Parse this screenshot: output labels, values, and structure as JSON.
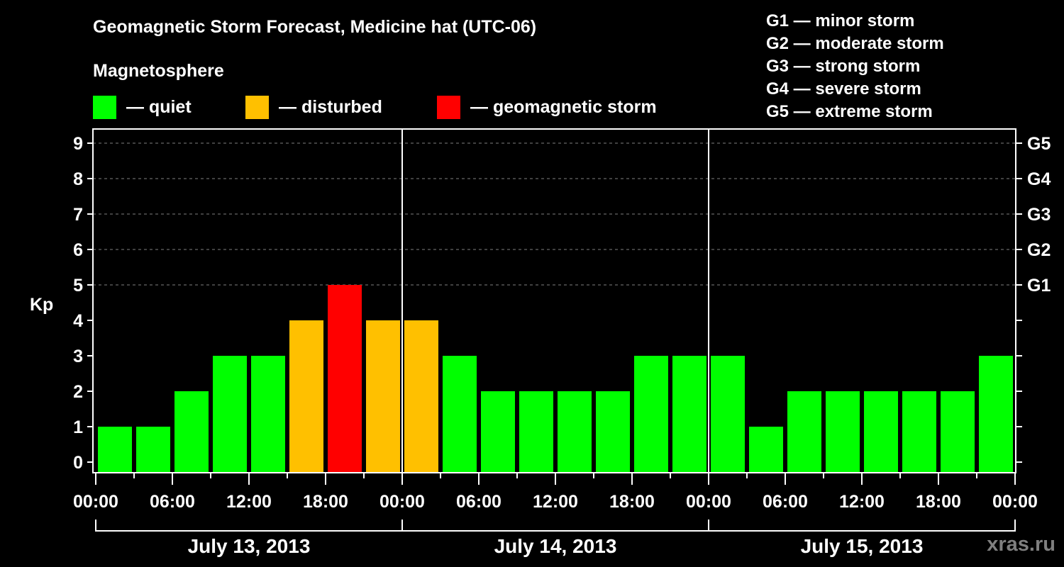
{
  "title": "Geomagnetic Storm Forecast, Medicine hat (UTC-06)",
  "legend": {
    "heading": "Magnetosphere",
    "items": [
      {
        "label": "— quiet",
        "color": "#00ff00"
      },
      {
        "label": "— disturbed",
        "color": "#ffc000"
      },
      {
        "label": "— geomagnetic storm",
        "color": "#ff0000"
      }
    ]
  },
  "storm_scale": [
    "G1 — minor storm",
    "G2 — moderate storm",
    "G3 — strong storm",
    "G4 — severe storm",
    "G5 — extreme storm"
  ],
  "watermark": "xras.ru",
  "colors": {
    "quiet": "#00ff00",
    "disturbed": "#ffc000",
    "storm": "#ff0000",
    "background": "#000000",
    "grid": "#808080"
  },
  "chart_data": {
    "type": "bar",
    "title": "Geomagnetic Storm Forecast, Medicine hat (UTC-06)",
    "xlabel": "",
    "ylabel": "Kp",
    "ylim": [
      0,
      9
    ],
    "yticks": [
      0,
      1,
      2,
      3,
      4,
      5,
      6,
      7,
      8,
      9
    ],
    "right_axis_labels": [
      {
        "kp": 5,
        "label": "G1"
      },
      {
        "kp": 6,
        "label": "G2"
      },
      {
        "kp": 7,
        "label": "G3"
      },
      {
        "kp": 8,
        "label": "G4"
      },
      {
        "kp": 9,
        "label": "G5"
      }
    ],
    "grid": "dashed horizontal at Kp 5-9",
    "x_tick_labels": [
      "00:00",
      "06:00",
      "12:00",
      "18:00",
      "00:00",
      "06:00",
      "12:00",
      "18:00",
      "00:00",
      "06:00",
      "12:00",
      "18:00",
      "00:00"
    ],
    "days": [
      "July 13, 2013",
      "July 14, 2013",
      "July 15, 2013"
    ],
    "interval_hours": 3,
    "categories": [
      "Jul 13 00:00",
      "Jul 13 03:00",
      "Jul 13 06:00",
      "Jul 13 09:00",
      "Jul 13 12:00",
      "Jul 13 15:00",
      "Jul 13 18:00",
      "Jul 13 21:00",
      "Jul 14 00:00",
      "Jul 14 03:00",
      "Jul 14 06:00",
      "Jul 14 09:00",
      "Jul 14 12:00",
      "Jul 14 15:00",
      "Jul 14 18:00",
      "Jul 14 21:00",
      "Jul 15 00:00",
      "Jul 15 03:00",
      "Jul 15 06:00",
      "Jul 15 09:00",
      "Jul 15 12:00",
      "Jul 15 15:00",
      "Jul 15 18:00",
      "Jul 15 21:00"
    ],
    "values": [
      1,
      1,
      2,
      3,
      3,
      4,
      5,
      4,
      4,
      3,
      2,
      2,
      2,
      2,
      3,
      3,
      3,
      1,
      2,
      2,
      2,
      2,
      2,
      3
    ],
    "status": [
      "quiet",
      "quiet",
      "quiet",
      "quiet",
      "quiet",
      "disturbed",
      "storm",
      "disturbed",
      "disturbed",
      "quiet",
      "quiet",
      "quiet",
      "quiet",
      "quiet",
      "quiet",
      "quiet",
      "quiet",
      "quiet",
      "quiet",
      "quiet",
      "quiet",
      "quiet",
      "quiet",
      "quiet"
    ]
  }
}
